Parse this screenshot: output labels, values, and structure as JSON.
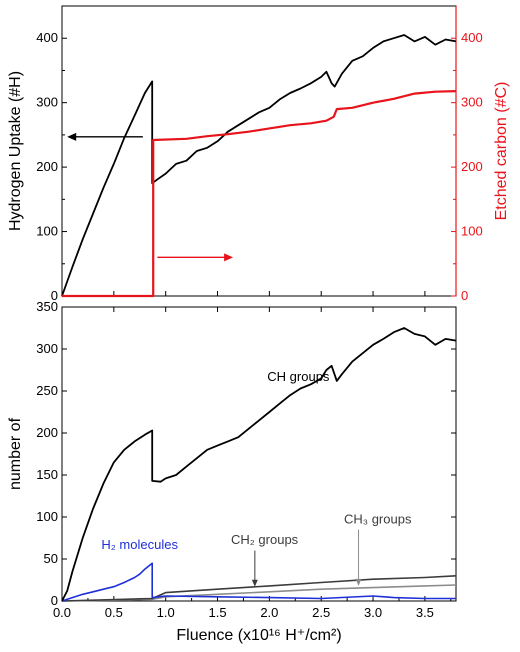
{
  "chart_data": [
    {
      "type": "line",
      "panel": "top",
      "xlabel_shared": true,
      "ylabel": "Hydrogen Uptake (#H)",
      "ylabel_right": "Etched carbon (#C)",
      "xlim": [
        0.0,
        3.8
      ],
      "ylim": [
        0,
        450
      ],
      "ylim_right": [
        0,
        450
      ],
      "yticks": [
        "0",
        "100",
        "200",
        "300",
        "400"
      ],
      "yticks_right": [
        "0",
        "100",
        "200",
        "300",
        "400"
      ],
      "colors": {
        "uptake": "#000000",
        "etched": "#e8141b"
      },
      "series": [
        {
          "axis": "left",
          "color": "#000000",
          "x": [
            0.0,
            0.1,
            0.2,
            0.3,
            0.4,
            0.5,
            0.6,
            0.7,
            0.8,
            0.87,
            0.87,
            0.93,
            1.0,
            1.1,
            1.2,
            1.3,
            1.4,
            1.5,
            1.6,
            1.7,
            1.8,
            1.9,
            2.0,
            2.1,
            2.2,
            2.3,
            2.4,
            2.5,
            2.55,
            2.6,
            2.63,
            2.7,
            2.8,
            2.9,
            3.0,
            3.1,
            3.2,
            3.3,
            3.4,
            3.5,
            3.6,
            3.7,
            3.8
          ],
          "y": [
            0,
            45,
            88,
            128,
            168,
            205,
            245,
            280,
            315,
            333,
            175,
            182,
            190,
            205,
            210,
            225,
            230,
            240,
            255,
            265,
            275,
            285,
            292,
            305,
            315,
            322,
            330,
            340,
            348,
            330,
            325,
            345,
            365,
            372,
            385,
            395,
            400,
            405,
            395,
            402,
            390,
            398,
            395
          ]
        },
        {
          "axis": "right",
          "color": "#e8141b",
          "step": true,
          "x": [
            0.0,
            0.87,
            0.87,
            0.88,
            0.88,
            1.2,
            1.4,
            1.6,
            1.8,
            2.0,
            2.2,
            2.4,
            2.55,
            2.62,
            2.65,
            2.8,
            3.0,
            3.2,
            3.4,
            3.6,
            3.8
          ],
          "y": [
            0,
            0,
            0,
            0,
            242,
            244,
            248,
            251,
            255,
            260,
            265,
            268,
            272,
            278,
            290,
            292,
            300,
            306,
            314,
            317,
            318
          ]
        }
      ],
      "annotations": [
        {
          "kind": "arrow",
          "direction": "left",
          "color": "#000000",
          "x_from": 0.78,
          "x_to": 0.05,
          "y": 247
        },
        {
          "kind": "arrow",
          "direction": "right",
          "color": "#e8141b",
          "x_from": 0.92,
          "x_to": 1.65,
          "y": 60
        }
      ]
    },
    {
      "type": "line",
      "panel": "bottom",
      "xlabel": "Fluence (x10¹⁶ H⁺/cm²)",
      "ylabel": "number of",
      "xlim": [
        0.0,
        3.8
      ],
      "ylim": [
        0,
        350
      ],
      "xticks": [
        "0.0",
        "0.5",
        "1.0",
        "1.5",
        "2.0",
        "2.5",
        "3.0",
        "3.5"
      ],
      "yticks": [
        "0",
        "50",
        "100",
        "150",
        "200",
        "250",
        "300",
        "350"
      ],
      "series": [
        {
          "name": "CH groups",
          "color": "#000000",
          "x": [
            0.0,
            0.05,
            0.1,
            0.2,
            0.3,
            0.4,
            0.5,
            0.6,
            0.7,
            0.8,
            0.87,
            0.87,
            0.95,
            1.0,
            1.1,
            1.2,
            1.3,
            1.4,
            1.5,
            1.6,
            1.7,
            1.8,
            1.9,
            2.0,
            2.1,
            2.2,
            2.3,
            2.4,
            2.5,
            2.55,
            2.6,
            2.65,
            2.7,
            2.8,
            2.9,
            3.0,
            3.1,
            3.2,
            3.3,
            3.4,
            3.5,
            3.6,
            3.7,
            3.8
          ],
          "y": [
            0,
            12,
            35,
            75,
            110,
            140,
            165,
            180,
            190,
            198,
            203,
            143,
            142,
            146,
            150,
            160,
            170,
            180,
            185,
            190,
            195,
            205,
            215,
            225,
            235,
            245,
            253,
            258,
            265,
            275,
            280,
            262,
            270,
            285,
            295,
            305,
            312,
            320,
            325,
            318,
            315,
            305,
            312,
            310
          ]
        },
        {
          "name": "H₂ molecules",
          "color": "#1f2fd8",
          "x": [
            0.0,
            0.1,
            0.2,
            0.3,
            0.4,
            0.5,
            0.6,
            0.7,
            0.75,
            0.8,
            0.87,
            0.87,
            1.0,
            1.5,
            2.0,
            2.5,
            3.0,
            3.2,
            3.5,
            3.8
          ],
          "y": [
            0,
            4,
            8,
            11,
            14,
            17,
            22,
            28,
            32,
            38,
            45,
            4,
            6,
            5,
            4,
            3,
            6,
            4,
            3,
            3
          ]
        },
        {
          "name": "CH₂ groups",
          "color": "#3c3c3c",
          "x": [
            0.0,
            0.3,
            0.6,
            0.87,
            1.0,
            1.5,
            2.0,
            2.5,
            3.0,
            3.5,
            3.8
          ],
          "y": [
            0,
            1,
            2,
            3,
            10,
            14,
            18,
            22,
            26,
            28,
            30
          ]
        },
        {
          "name": "CH₃ groups",
          "color": "#8c8c8c",
          "x": [
            0.0,
            0.5,
            0.87,
            1.0,
            1.5,
            2.0,
            2.5,
            3.0,
            3.5,
            3.8
          ],
          "y": [
            0,
            1,
            2,
            5,
            8,
            11,
            14,
            16,
            18,
            19
          ]
        }
      ],
      "annotations": [
        {
          "kind": "label",
          "text": "CH groups",
          "x": 1.98,
          "y": 262,
          "color": "#000000"
        },
        {
          "kind": "label",
          "text": "H₂ molecules",
          "x": 0.38,
          "y": 62,
          "color": "#1f2fd8"
        },
        {
          "kind": "label",
          "text": "CH₂ groups",
          "x": 1.63,
          "y": 68,
          "color": "#3c3c3c"
        },
        {
          "kind": "label",
          "text": "CH₃ groups",
          "x": 2.72,
          "y": 92,
          "color": "#3c3c3c"
        },
        {
          "kind": "arrow",
          "direction": "down",
          "color": "#3c3c3c",
          "x": 1.86,
          "y_from": 60,
          "y_to": 17
        },
        {
          "kind": "arrow",
          "direction": "down",
          "color": "#8c8c8c",
          "x": 2.86,
          "y_from": 85,
          "y_to": 18
        }
      ]
    }
  ]
}
